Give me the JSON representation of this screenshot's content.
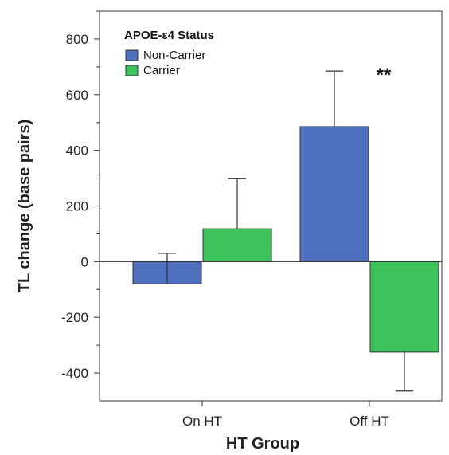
{
  "chart_data": {
    "type": "bar",
    "categories": [
      "On HT",
      "Off HT"
    ],
    "series": [
      {
        "name": "Non-Carrier",
        "values": [
          -80,
          485
        ],
        "errors": [
          110,
          200
        ],
        "error_direction": [
          "up",
          "up"
        ],
        "color": "#4f6fbf"
      },
      {
        "name": "Carrier",
        "values": [
          118,
          -325
        ],
        "errors": [
          180,
          140
        ],
        "error_direction": [
          "up",
          "down"
        ],
        "color": "#3cc35a"
      }
    ],
    "xlabel": "HT Group",
    "ylabel": "TL change (base pairs)",
    "ylim": [
      -500,
      900
    ],
    "yticks": [
      -400,
      -200,
      0,
      200,
      400,
      600,
      800
    ],
    "ytick_labels": [
      "-400",
      "-200",
      "0",
      "200",
      "400",
      "600",
      "800"
    ],
    "legend": {
      "title": "APOE-ε4 Status",
      "position": "top-left"
    },
    "annotations": [
      {
        "text": "**",
        "category": "Off HT"
      }
    ],
    "grid": false
  }
}
